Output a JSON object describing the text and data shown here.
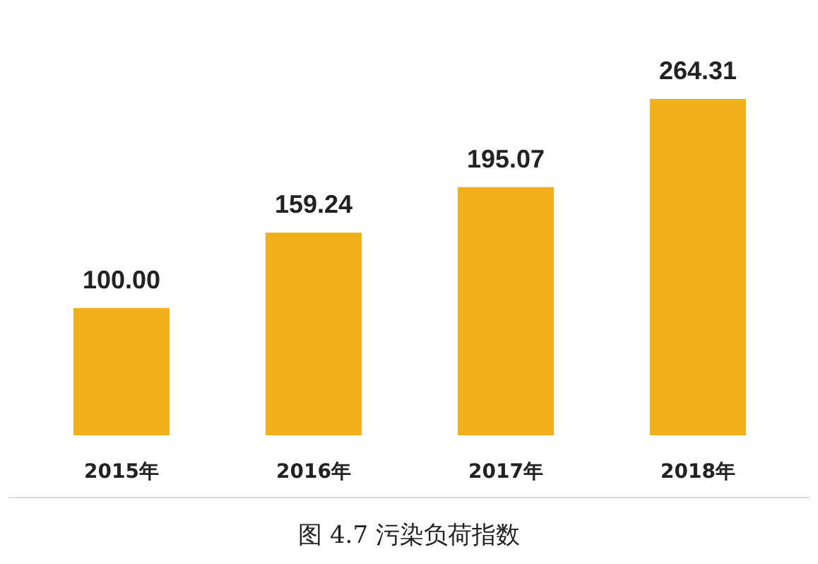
{
  "chart_data": {
    "type": "bar",
    "categories": [
      "2015年",
      "2016年",
      "2017年",
      "2018年"
    ],
    "values": [
      100.0,
      159.24,
      195.07,
      264.31
    ],
    "value_labels": [
      "100.00",
      "159.24",
      "195.07",
      "264.31"
    ],
    "color": "#f2b01c",
    "annotations": [
      "图 4.7  污染负荷指数"
    ]
  }
}
